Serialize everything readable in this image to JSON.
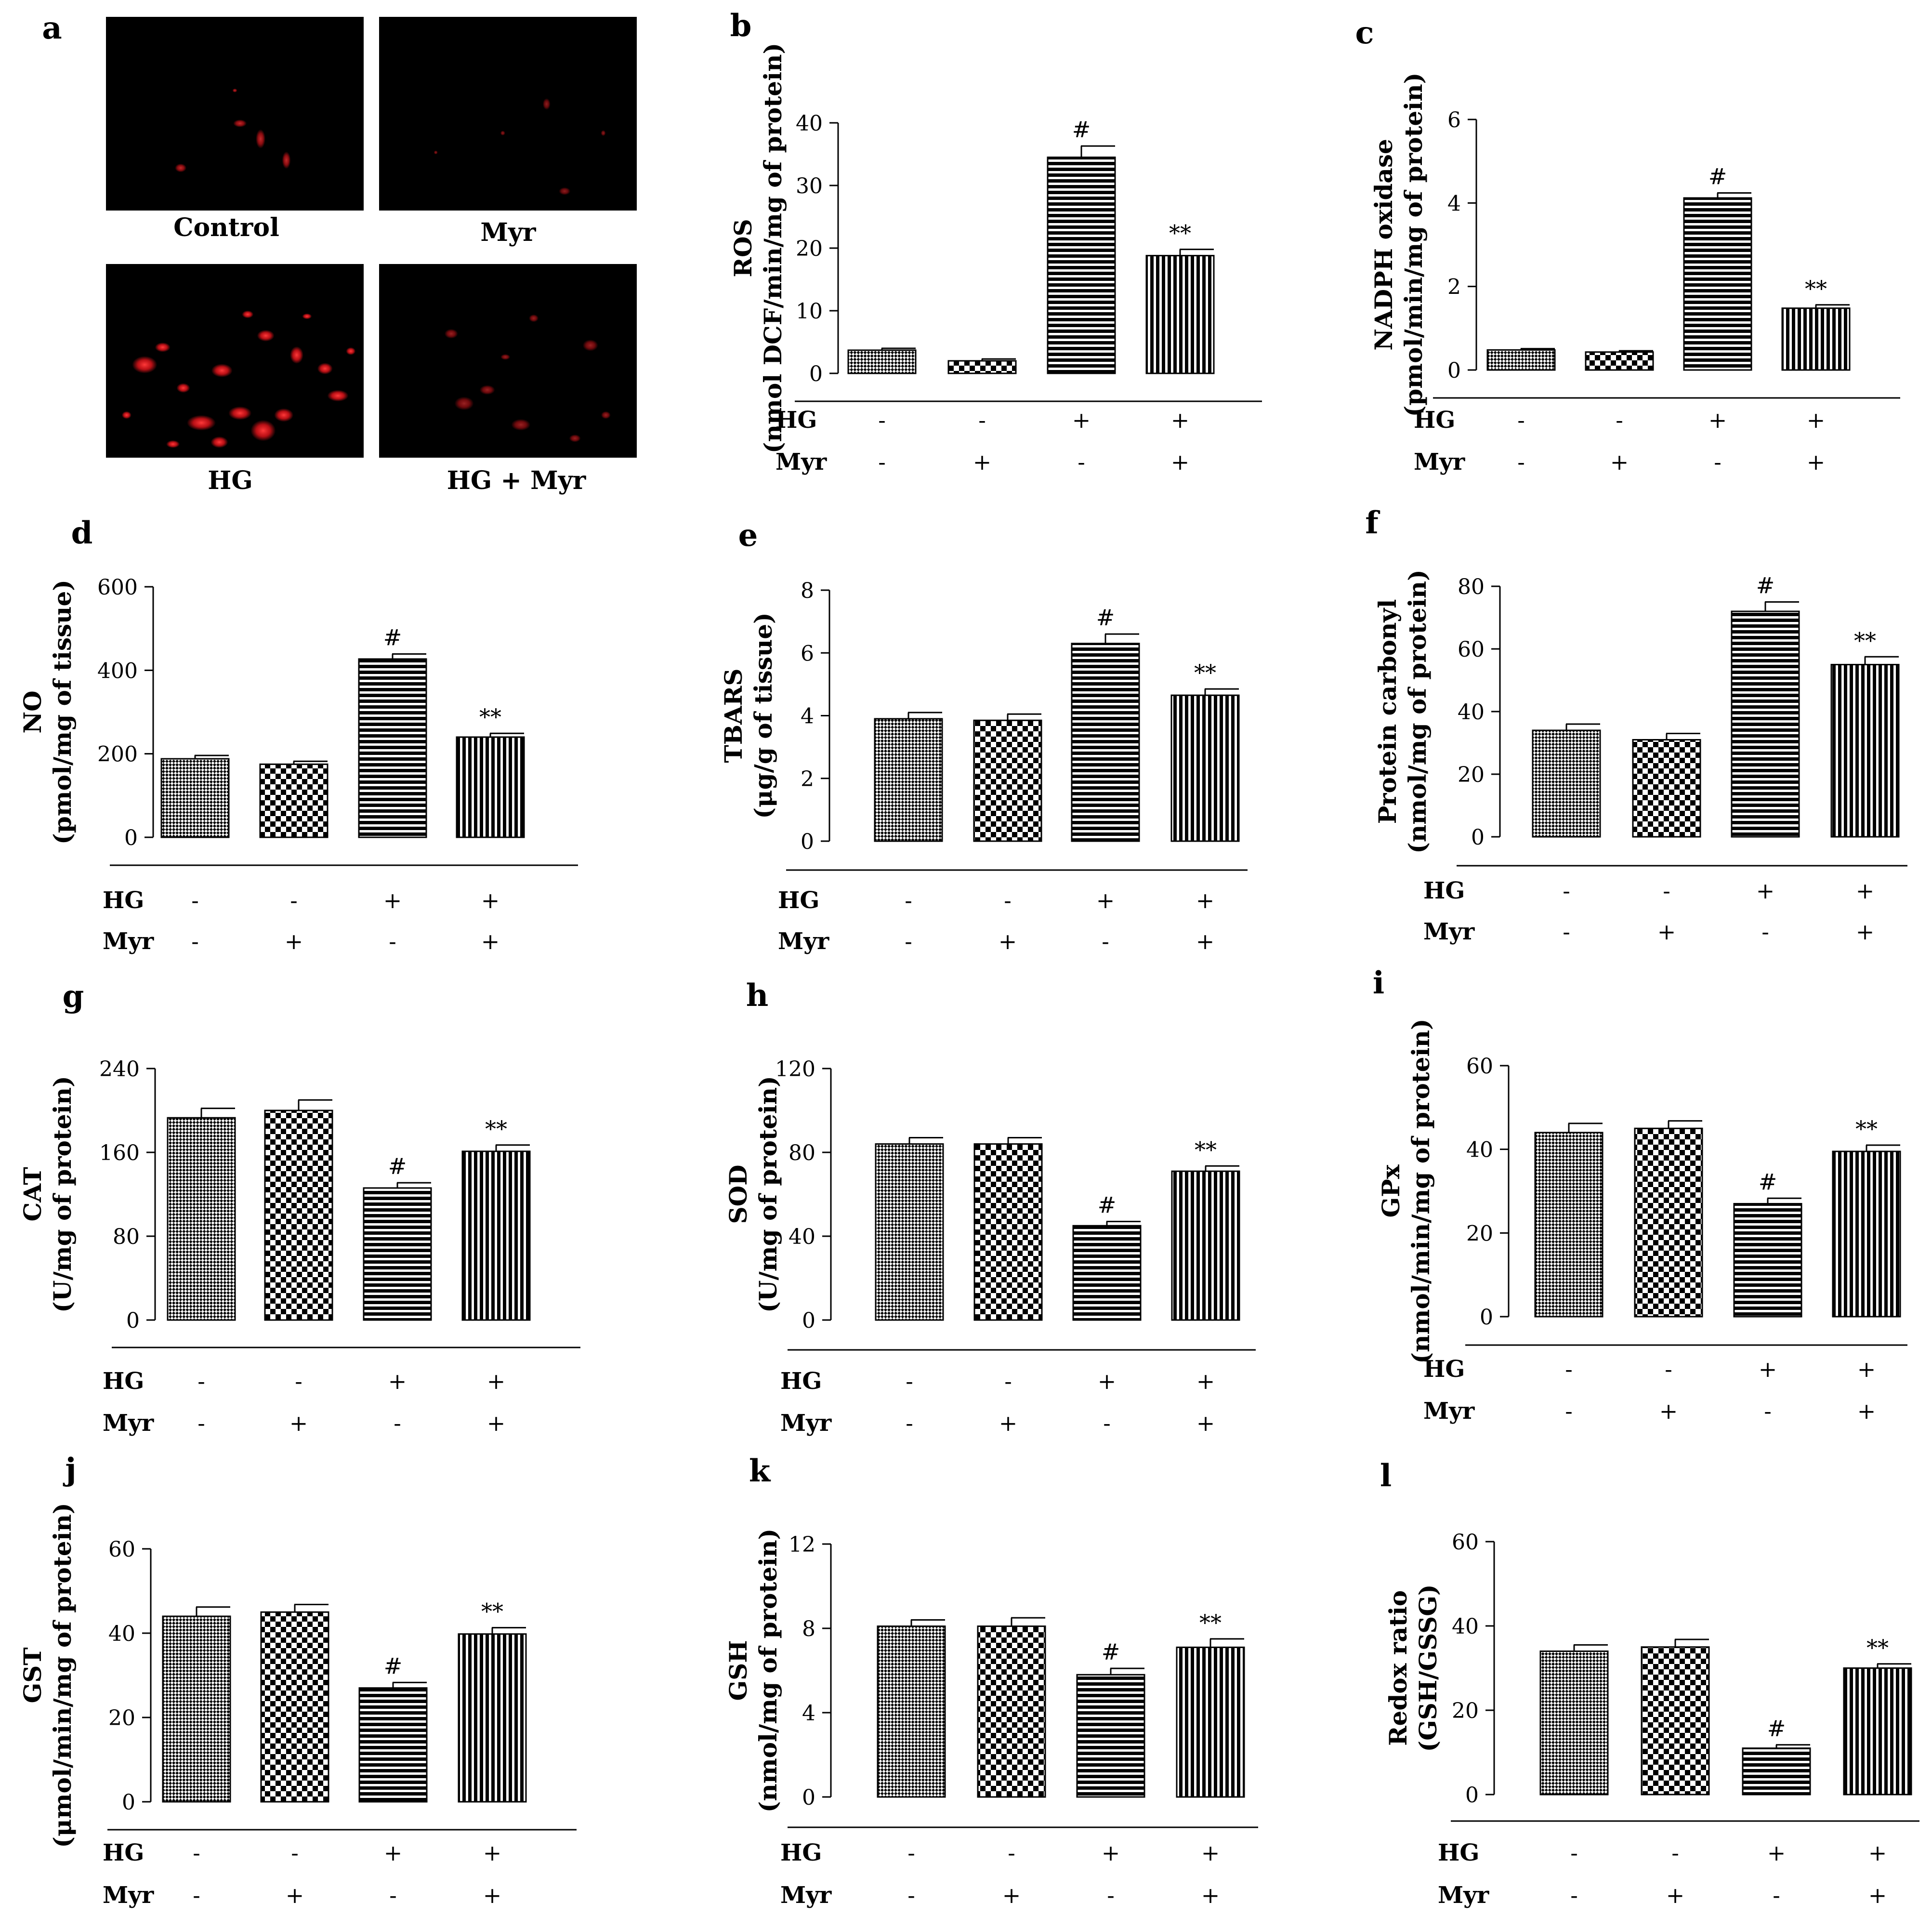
{
  "figure": {
    "panel_a": {
      "letter": "a",
      "images": [
        {
          "caption": "Control",
          "intensity": "low"
        },
        {
          "caption": "Myr",
          "intensity": "low"
        },
        {
          "caption": "HG",
          "intensity": "high"
        },
        {
          "caption": "HG + Myr",
          "intensity": "moderate"
        }
      ]
    },
    "treatment_rows": [
      {
        "label": "HG",
        "signs": [
          "-",
          "-",
          "+",
          "+"
        ]
      },
      {
        "label": "Myr",
        "signs": [
          "-",
          "+",
          "-",
          "+"
        ]
      }
    ],
    "colors": {
      "ink": "#000000",
      "background": "#ffffff",
      "micrograph_bg": "#000000",
      "stain": "#e8141b"
    },
    "patterns": [
      "diagonal-checker",
      "checkerboard",
      "horizontal-stripes",
      "vertical-stripes"
    ]
  },
  "chart_data": [
    {
      "panel": "b",
      "type": "bar",
      "ylabel": [
        "ROS",
        "(nmol DCF/min/mg of protein)"
      ],
      "ylim": [
        0,
        40
      ],
      "ticks": [
        0,
        10,
        20,
        30,
        40
      ],
      "categories": [
        "Control",
        "Myr",
        "HG",
        "HG + Myr"
      ],
      "values": [
        3.7,
        2.0,
        34.5,
        18.8
      ],
      "errors": [
        0.3,
        0.3,
        1.8,
        1.0
      ],
      "annotations": [
        "",
        "",
        "#",
        "**"
      ]
    },
    {
      "panel": "c",
      "type": "bar",
      "ylabel": [
        "NADPH oxidase",
        "(pmol/min/mg of protein)"
      ],
      "ylim": [
        0,
        6
      ],
      "ticks": [
        0,
        2,
        4,
        6
      ],
      "categories": [
        "Control",
        "Myr",
        "HG",
        "HG + Myr"
      ],
      "values": [
        0.48,
        0.43,
        4.12,
        1.48
      ],
      "errors": [
        0.03,
        0.03,
        0.12,
        0.08
      ],
      "annotations": [
        "",
        "",
        "#",
        "**"
      ]
    },
    {
      "panel": "d",
      "type": "bar",
      "ylabel": [
        "NO",
        "(pmol/mg of tissue)"
      ],
      "ylim": [
        0,
        600
      ],
      "ticks": [
        0,
        200,
        400,
        600
      ],
      "categories": [
        "Control",
        "Myr",
        "HG",
        "HG + Myr"
      ],
      "values": [
        188,
        175,
        427,
        240
      ],
      "errors": [
        8,
        7,
        12,
        9
      ],
      "annotations": [
        "",
        "",
        "#",
        "**"
      ]
    },
    {
      "panel": "e",
      "type": "bar",
      "ylabel": [
        "TBARS",
        "(μg/g of tissue)"
      ],
      "ylim": [
        0,
        8
      ],
      "ticks": [
        0,
        2,
        4,
        6,
        8
      ],
      "categories": [
        "Control",
        "Myr",
        "HG",
        "HG + Myr"
      ],
      "values": [
        3.9,
        3.85,
        6.3,
        4.65
      ],
      "errors": [
        0.2,
        0.2,
        0.3,
        0.2
      ],
      "annotations": [
        "",
        "",
        "#",
        "**"
      ]
    },
    {
      "panel": "f",
      "type": "bar",
      "ylabel": [
        "Protein carbonyl",
        "(nmol/mg of protein)"
      ],
      "ylim": [
        0,
        80
      ],
      "ticks": [
        0,
        20,
        40,
        60,
        80
      ],
      "categories": [
        "Control",
        "Myr",
        "HG",
        "HG + Myr"
      ],
      "values": [
        34,
        31,
        72,
        55
      ],
      "errors": [
        2,
        2,
        3,
        2.5
      ],
      "annotations": [
        "",
        "",
        "#",
        "**"
      ]
    },
    {
      "panel": "g",
      "type": "bar",
      "ylabel": [
        "CAT",
        "(U/mg of protein)"
      ],
      "ylim": [
        0,
        240
      ],
      "ticks": [
        0,
        80,
        160,
        240
      ],
      "categories": [
        "Control",
        "Myr",
        "HG",
        "HG + Myr"
      ],
      "values": [
        193,
        200,
        126,
        161
      ],
      "errors": [
        9,
        10,
        5,
        6
      ],
      "annotations": [
        "",
        "",
        "#",
        "**"
      ]
    },
    {
      "panel": "h",
      "type": "bar",
      "ylabel": [
        "SOD",
        "(U/mg of protein)"
      ],
      "ylim": [
        0,
        120
      ],
      "ticks": [
        0,
        40,
        80,
        120
      ],
      "categories": [
        "Control",
        "Myr",
        "HG",
        "HG + Myr"
      ],
      "values": [
        84,
        84,
        45,
        71
      ],
      "errors": [
        3,
        3,
        2,
        2.5
      ],
      "annotations": [
        "",
        "",
        "#",
        "**"
      ]
    },
    {
      "panel": "i",
      "type": "bar",
      "ylabel": [
        "GPx",
        "(nmol/min/mg of protein)"
      ],
      "ylim": [
        0,
        60
      ],
      "ticks": [
        0,
        20,
        40,
        60
      ],
      "categories": [
        "Control",
        "Myr",
        "HG",
        "HG + Myr"
      ],
      "values": [
        44,
        45,
        27,
        39.5
      ],
      "errors": [
        2.2,
        1.8,
        1.3,
        1.5
      ],
      "annotations": [
        "",
        "",
        "#",
        "**"
      ]
    },
    {
      "panel": "j",
      "type": "bar",
      "ylabel": [
        "GST",
        "(μmol/min/mg of protein)"
      ],
      "ylim": [
        0,
        60
      ],
      "ticks": [
        0,
        20,
        40,
        60
      ],
      "categories": [
        "Control",
        "Myr",
        "HG",
        "HG + Myr"
      ],
      "values": [
        44,
        45,
        27,
        39.8
      ],
      "errors": [
        2.2,
        1.8,
        1.3,
        1.5
      ],
      "annotations": [
        "",
        "",
        "#",
        "**"
      ]
    },
    {
      "panel": "k",
      "type": "bar",
      "ylabel": [
        "GSH",
        "(nmol/mg of protein)"
      ],
      "ylim": [
        0,
        12
      ],
      "ticks": [
        0,
        4,
        8,
        12
      ],
      "categories": [
        "Control",
        "Myr",
        "HG",
        "HG + Myr"
      ],
      "values": [
        8.1,
        8.1,
        5.8,
        7.1
      ],
      "errors": [
        0.3,
        0.4,
        0.3,
        0.4
      ],
      "annotations": [
        "",
        "",
        "#",
        "**"
      ]
    },
    {
      "panel": "l",
      "type": "bar",
      "ylabel": [
        "Redox ratio",
        "(GSH/GSSG)"
      ],
      "ylim": [
        0,
        60
      ],
      "ticks": [
        0,
        20,
        40,
        60
      ],
      "categories": [
        "Control",
        "Myr",
        "HG",
        "HG + Myr"
      ],
      "values": [
        34,
        35,
        11,
        30
      ],
      "errors": [
        1.5,
        1.8,
        0.8,
        1.0
      ],
      "annotations": [
        "",
        "",
        "#",
        "**"
      ]
    }
  ]
}
